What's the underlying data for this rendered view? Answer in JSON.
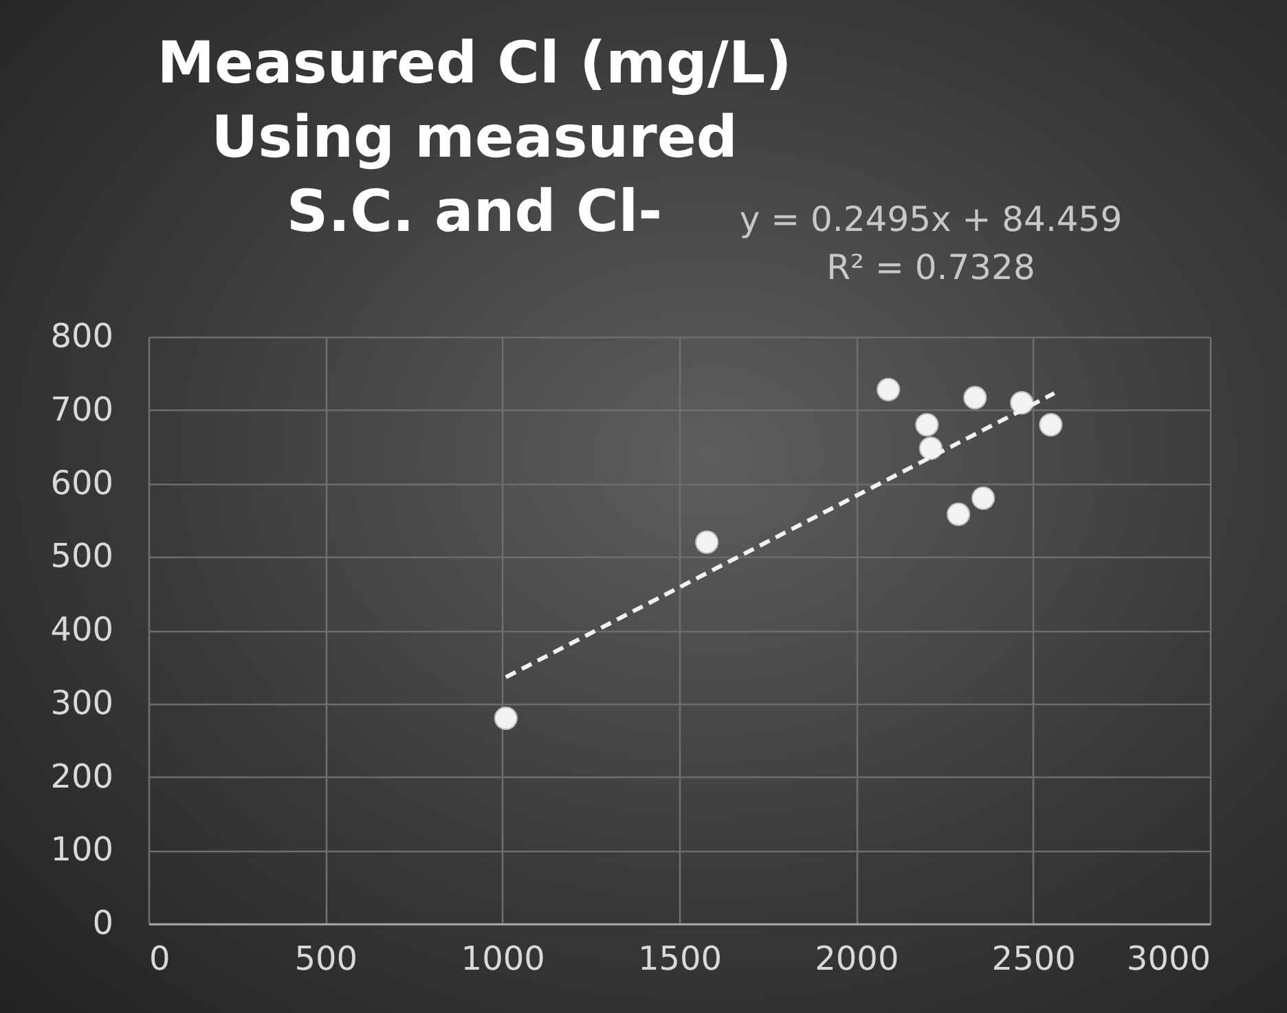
{
  "chart_data": {
    "type": "scatter",
    "title": "Measured Cl (mg/L)\nUsing measured\nS.C. and Cl-",
    "annotations": [
      "y = 0.2495x + 84.459",
      "R² = 0.7328"
    ],
    "xlim": [
      0,
      3000
    ],
    "xticks": [
      0,
      500,
      1000,
      1500,
      2000,
      2500,
      3000
    ],
    "ylim": [
      0,
      800
    ],
    "yticks": [
      0,
      100,
      200,
      300,
      400,
      500,
      600,
      700,
      800
    ],
    "grid": true,
    "series": [
      {
        "marker": "circle",
        "color": "#f2f2f2",
        "x": [
          1010,
          1578,
          2091,
          2200,
          2211,
          2336,
          2289,
          2359,
          2468,
          2550
        ],
        "values": [
          280,
          520,
          728,
          680,
          648,
          717,
          558,
          580,
          710,
          680
        ]
      },
      {
        "type": "line",
        "color": "#f2f2f2",
        "line_style": "dashed",
        "x": [
          1010,
          2560
        ],
        "values": [
          336,
          723
        ]
      }
    ]
  }
}
